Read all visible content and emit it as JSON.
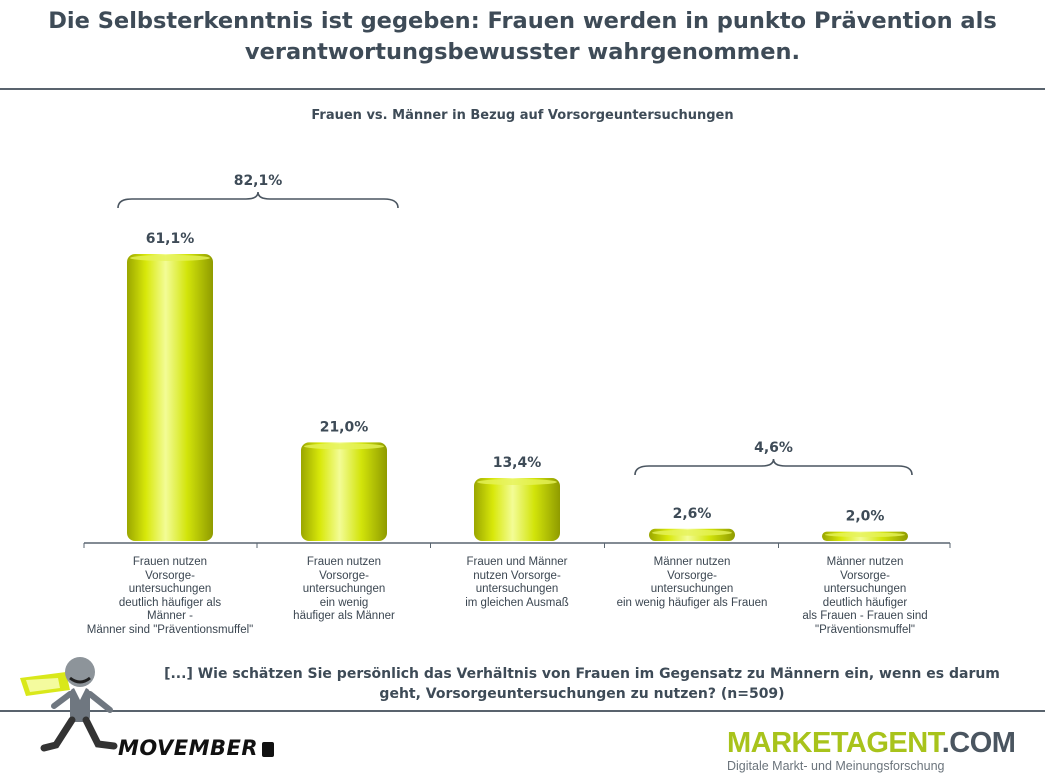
{
  "header": {
    "title_line1": "Die Selbsterkenntnis ist gegeben: Frauen werden in punkto Prävention als",
    "title_line2": "verantwortungsbewusster wahrgenommen."
  },
  "question": {
    "line1": "[...] Wie schätzen Sie persönlich das Verhältnis von Frauen im Gegensatz zu Männern ein, wenn es darum",
    "line2": "geht, Vorsorgeuntersuchungen zu nutzen? (n=509)"
  },
  "logos": {
    "movember": "MOVEMBER",
    "marketagent_main": "MARKETAGENT",
    "marketagent_suffix": ".COM",
    "marketagent_tagline": "Digitale Markt- und Meinungsforschung"
  },
  "colors": {
    "bar_fill": "#cfe10a",
    "bar_light": "#f0fb8c",
    "bar_dark": "#8e9a00",
    "text": "#3e4b57",
    "brand_green": "#a8c31b"
  },
  "chart_data": {
    "type": "bar",
    "title": "Frauen vs. Männer in Bezug auf Vorsorgeuntersuchungen",
    "categories": [
      "Frauen nutzen\nVorsorge-\nuntersuchungen\ndeutlich häufiger als\nMänner -\nMänner sind \"Präventionsmuffel\"",
      "Frauen nutzen\nVorsorge-\nuntersuchungen\nein wenig\nhäufiger als Männer",
      "Frauen und Männer\nnutzen Vorsorge-\nuntersuchungen\nim gleichen Ausmaß",
      "Männer nutzen\nVorsorge-\nuntersuchungen\nein wenig häufiger als Frauen",
      "Männer nutzen\nVorsorge-\nuntersuchungen\ndeutlich häufiger\nals Frauen - Frauen sind\n\"Präventionsmuffel\""
    ],
    "values": [
      61.1,
      21.0,
      13.4,
      2.6,
      2.0
    ],
    "value_labels": [
      "61,1%",
      "21,0%",
      "13,4%",
      "2,6%",
      "2,0%"
    ],
    "ylim": [
      0,
      61.1
    ],
    "groups": [
      {
        "label": "82,1%",
        "from": 0,
        "to": 1
      },
      {
        "label": "4,6%",
        "from": 3,
        "to": 4
      }
    ]
  }
}
